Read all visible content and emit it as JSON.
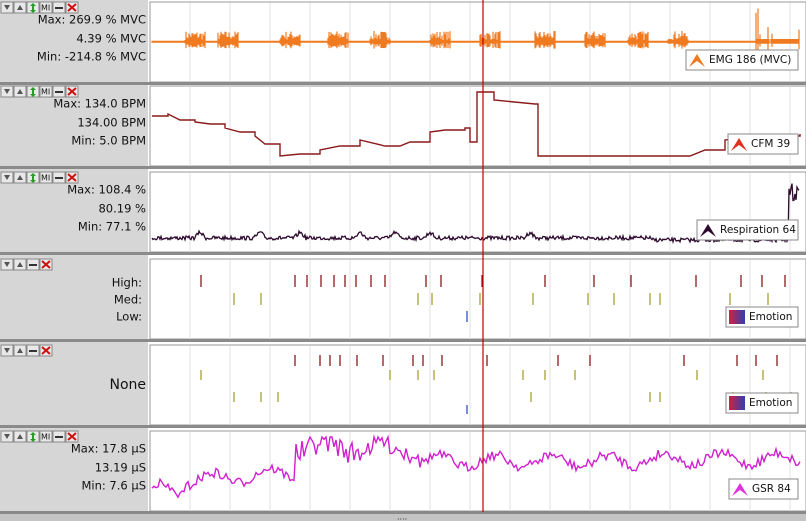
{
  "icon_text": "MI",
  "panels": [
    {
      "max": "Max: 269.9 % MVC",
      "current": "4.39 % MVC",
      "min": "Min: -214.8 % MVC",
      "channel": "EMG 186 (MVC)"
    },
    {
      "max": "Max: 134.0 BPM",
      "current": "134.00 BPM",
      "min": "Min: 5.0 BPM",
      "channel": "CFM 39"
    },
    {
      "max": "Max: 108.4 %",
      "current": "80.19 %",
      "min": "Min: 77.1 %",
      "channel": "Respiration 64"
    },
    {
      "levels": [
        "High:",
        "Med:",
        "Low:"
      ],
      "channel": "Emotion"
    },
    {
      "status": "None",
      "channel": "Emotion"
    },
    {
      "max": "Max: 17.8 µS",
      "current": "13.19 µS",
      "min": "Min: 7.6 µS",
      "channel": "GSR 84"
    }
  ]
}
